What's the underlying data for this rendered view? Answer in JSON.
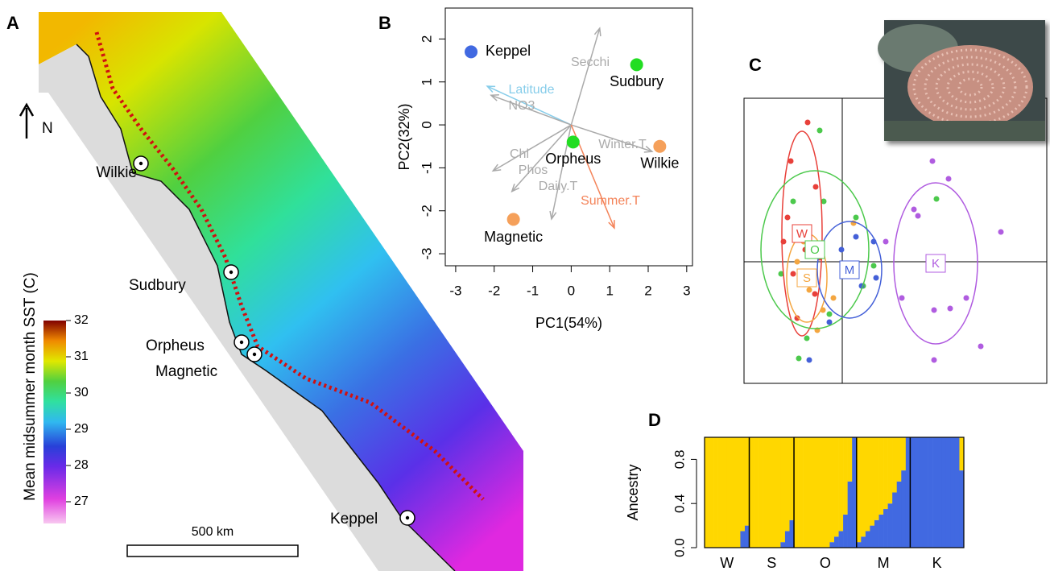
{
  "map": {
    "panel_label": "A",
    "north": "N",
    "scale_bar": "500 km",
    "sites": [
      "Wilkie",
      "Sudbury",
      "Orpheus",
      "Magnetic",
      "Keppel"
    ],
    "colorbar": {
      "label": "Mean midsummer month SST (C)",
      "lim": [
        26.4,
        32
      ],
      "ticks": [
        27,
        28,
        29,
        30,
        31,
        32
      ]
    }
  },
  "chart_data": [
    {
      "type": "biplot",
      "panel_label": "B",
      "xlabel": "PC1(54%)",
      "ylabel": "PC2(32%)",
      "xlim": [
        -3.27,
        3.15
      ],
      "ylim": [
        -3.28,
        2.72
      ],
      "xticks": [
        -3,
        -2,
        -1,
        0,
        1,
        2,
        3
      ],
      "yticks": [
        -3,
        -2,
        -1,
        0,
        1,
        2
      ],
      "points": {
        "names": [
          "Keppel",
          "Sudbury",
          "Orpheus",
          "Wilkie",
          "Magnetic"
        ],
        "colors": [
          "#4169e1",
          "#22dd22",
          "#22dd22",
          "#f5a05a",
          "#f5a05a"
        ],
        "x": [
          -2.6,
          1.7,
          0.05,
          2.3,
          -1.5
        ],
        "y": [
          1.7,
          1.4,
          -0.4,
          -0.5,
          -2.2
        ]
      },
      "loadings": {
        "names": [
          "Secchi",
          "Latitude",
          "NO3",
          "Winter.T",
          "Chl",
          "Phos",
          "Daily.T",
          "Summer.T"
        ],
        "colors": [
          "#aaaaaa",
          "#87cdea",
          "#aaaaaa",
          "#aaaaaa",
          "#aaaaaa",
          "#aaaaaa",
          "#aaaaaa",
          "#f4845a"
        ],
        "x": [
          0.74,
          -2.18,
          -2.08,
          2.1,
          -2.03,
          -1.54,
          -0.51,
          1.12
        ],
        "y": [
          2.25,
          0.9,
          0.69,
          -0.62,
          -1.07,
          -1.55,
          -2.19,
          -2.4
        ]
      }
    },
    {
      "type": "scatter",
      "panel_label": "C",
      "xlim": [
        -1.22,
        2.54
      ],
      "ylim": [
        -1.51,
        2.03
      ],
      "series": [
        {
          "name": "W",
          "color": "#e8403a",
          "x": [
            -0.43,
            -0.64,
            -0.33,
            -0.68,
            -0.46,
            -0.61,
            -0.34,
            -0.56,
            -0.28,
            -0.73
          ],
          "y": [
            1.73,
            1.25,
            0.93,
            0.55,
            0.15,
            -0.15,
            -0.4,
            -0.7,
            0.05,
            0.25
          ],
          "ellipse": {
            "center_x": -0.5,
            "center_y": 0.35,
            "rx": 0.25,
            "ry": 1.27
          }
        },
        {
          "name": "O",
          "color": "#4cc94c",
          "x": [
            -0.28,
            -0.23,
            0.17,
            -0.61,
            -0.76,
            0.26,
            -0.16,
            -0.54,
            1.17,
            0.39,
            -0.44
          ],
          "y": [
            1.63,
            0.75,
            0.55,
            0.75,
            -0.15,
            -0.3,
            -0.65,
            -1.2,
            0.78,
            -0.05,
            -0.95
          ],
          "ellipse": {
            "center_x": -0.34,
            "center_y": 0.15,
            "rx": 0.67,
            "ry": 0.98
          }
        },
        {
          "name": "S",
          "color": "#f4a640",
          "x": [
            0.14,
            -0.56,
            -0.41,
            -0.24,
            -0.48,
            -0.11,
            -0.31
          ],
          "y": [
            0.48,
            0,
            -0.35,
            -0.6,
            0.25,
            -0.45,
            -0.85
          ],
          "ellipse": {
            "center_x": -0.44,
            "center_y": -0.2,
            "rx": 0.25,
            "ry": 0.55
          }
        },
        {
          "name": "M",
          "color": "#4460d8",
          "x": [
            0.17,
            0.39,
            0.24,
            0.42,
            -0.41,
            -0.01,
            -0.16
          ],
          "y": [
            0.31,
            0.25,
            -0.3,
            -0.2,
            -1.22,
            0.15,
            -0.75
          ],
          "ellipse": {
            "center_x": 0.09,
            "center_y": -0.1,
            "rx": 0.4,
            "ry": 0.6
          }
        },
        {
          "name": "K",
          "color": "#b05ce0",
          "x": [
            1.12,
            1.32,
            0.89,
            0.54,
            0.74,
            1.14,
            1.54,
            1.97,
            1.72,
            1.14,
            0.94,
            1.34
          ],
          "y": [
            1.25,
            1.03,
            0.65,
            0.25,
            -0.45,
            -0.6,
            -0.45,
            0.37,
            -1.05,
            -1.22,
            0.57,
            -0.58
          ],
          "ellipse": {
            "center_x": 1.16,
            "center_y": -0.02,
            "rx": 0.52,
            "ry": 1.0
          }
        }
      ]
    },
    {
      "type": "stacked_bar",
      "panel_label": "D",
      "ylabel": "Ancestry",
      "ylim": [
        0,
        1
      ],
      "yticks": [
        {
          "value": 0,
          "label": "0.0"
        },
        0.4,
        0.8
      ],
      "categories": [
        "W",
        "W",
        "W",
        "W",
        "W",
        "W",
        "W",
        "W",
        "W",
        "W",
        "S",
        "S",
        "S",
        "S",
        "S",
        "S",
        "S",
        "S",
        "S",
        "S",
        "O",
        "O",
        "O",
        "O",
        "O",
        "O",
        "O",
        "O",
        "O",
        "O",
        "O",
        "O",
        "O",
        "O",
        "M",
        "M",
        "M",
        "M",
        "M",
        "M",
        "M",
        "M",
        "M",
        "M",
        "M",
        "M",
        "K",
        "K",
        "K",
        "K",
        "K",
        "K",
        "K",
        "K",
        "K",
        "K",
        "K",
        "K"
      ],
      "series": [
        {
          "color": "#4169e1",
          "values": [
            0,
            0,
            0,
            0,
            0,
            0,
            0,
            0,
            0.15,
            0.2,
            0,
            0,
            0,
            0,
            0,
            0,
            0,
            0.05,
            0.15,
            0.25,
            0,
            0,
            0,
            0,
            0,
            0,
            0,
            0,
            0.05,
            0.1,
            0.15,
            0.3,
            0.6,
            1,
            0.05,
            0.1,
            0.15,
            0.2,
            0.25,
            0.3,
            0.35,
            0.4,
            0.5,
            0.6,
            0.7,
            1,
            1,
            1,
            1,
            1,
            1,
            1,
            1,
            1,
            1,
            1,
            1,
            0.7
          ]
        },
        {
          "color": "#ffd700",
          "values": [
            1,
            1,
            1,
            1,
            1,
            1,
            1,
            1,
            0.85,
            0.8,
            1,
            1,
            1,
            1,
            1,
            1,
            1,
            0.95,
            0.85,
            0.75,
            1,
            1,
            1,
            1,
            1,
            1,
            1,
            1,
            0.95,
            0.9,
            0.85,
            0.7,
            0.4,
            0,
            0.95,
            0.9,
            0.85,
            0.8,
            0.75,
            0.7,
            0.65,
            0.6,
            0.5,
            0.4,
            0.3,
            0,
            0,
            0,
            0,
            0,
            0,
            0,
            0,
            0,
            0,
            0,
            0,
            0.3
          ]
        }
      ]
    }
  ]
}
